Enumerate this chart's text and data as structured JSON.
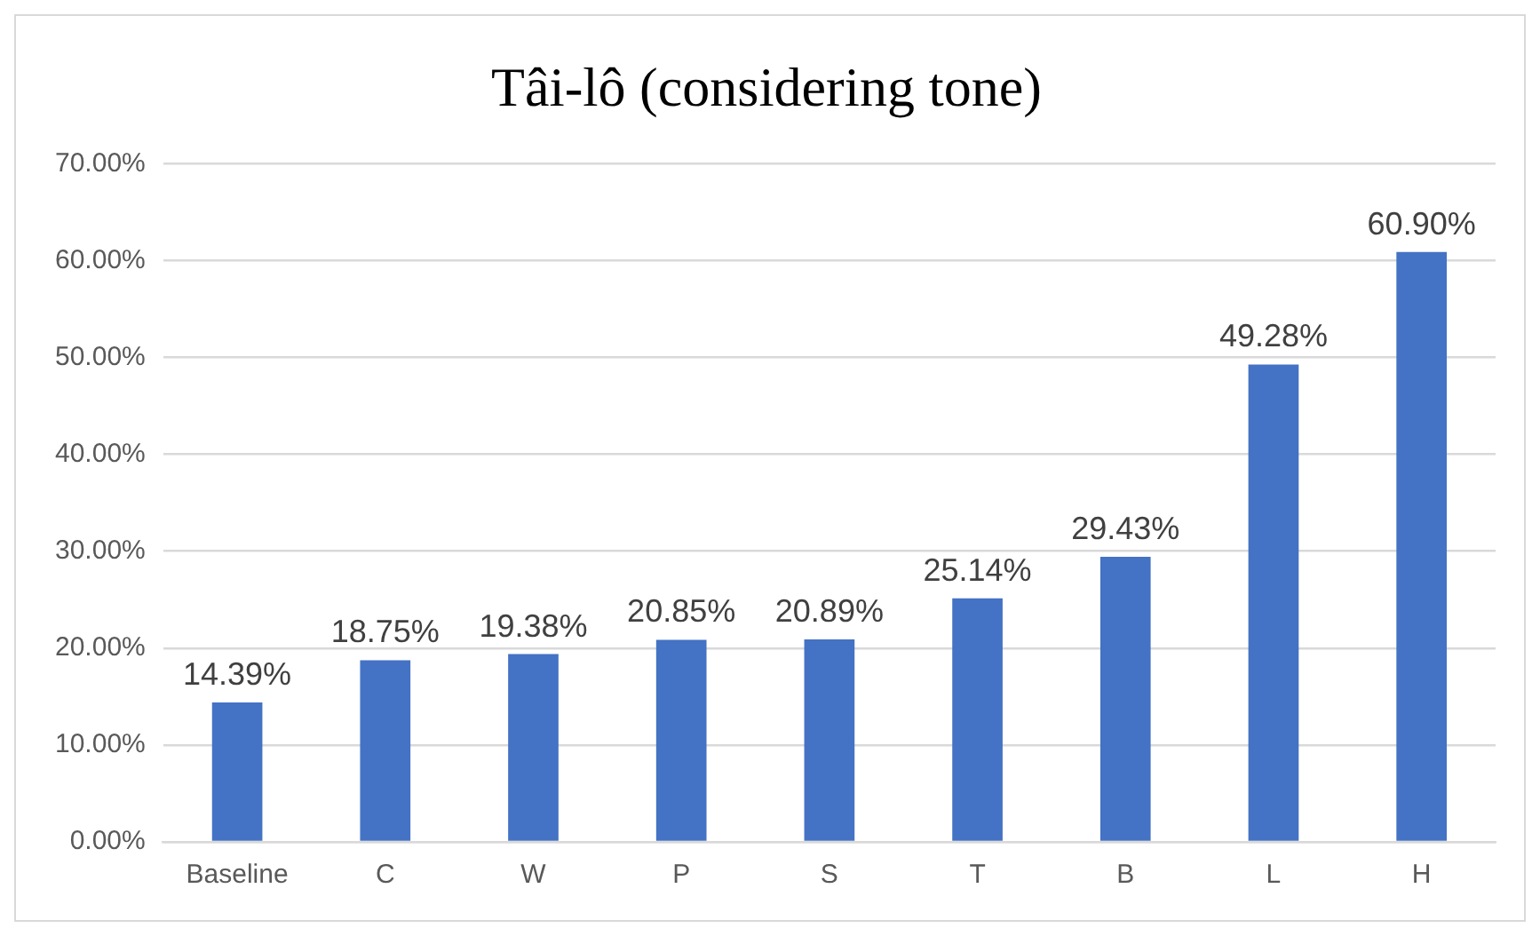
{
  "chart_data": {
    "type": "bar",
    "title": "Tâi-lô (considering tone)",
    "categories": [
      "Baseline",
      "C",
      "W",
      "P",
      "S",
      "T",
      "B",
      "L",
      "H"
    ],
    "values": [
      14.39,
      18.75,
      19.38,
      20.85,
      20.89,
      25.14,
      29.43,
      49.28,
      60.9
    ],
    "value_labels": [
      "14.39%",
      "18.75%",
      "19.38%",
      "20.85%",
      "20.89%",
      "25.14%",
      "29.43%",
      "49.28%",
      "60.90%"
    ],
    "color": "#4472c4",
    "ylim": [
      0,
      70
    ],
    "yticks": [
      {
        "value": 0,
        "label": "0.00%"
      },
      {
        "value": 10,
        "label": "10.00%"
      },
      {
        "value": 20,
        "label": "20.00%"
      },
      {
        "value": 30,
        "label": "30.00%"
      },
      {
        "value": 40,
        "label": "40.00%"
      },
      {
        "value": 50,
        "label": "50.00%"
      },
      {
        "value": 60,
        "label": "60.00%"
      },
      {
        "value": 70,
        "label": "70.00%"
      }
    ],
    "grid": "y"
  }
}
